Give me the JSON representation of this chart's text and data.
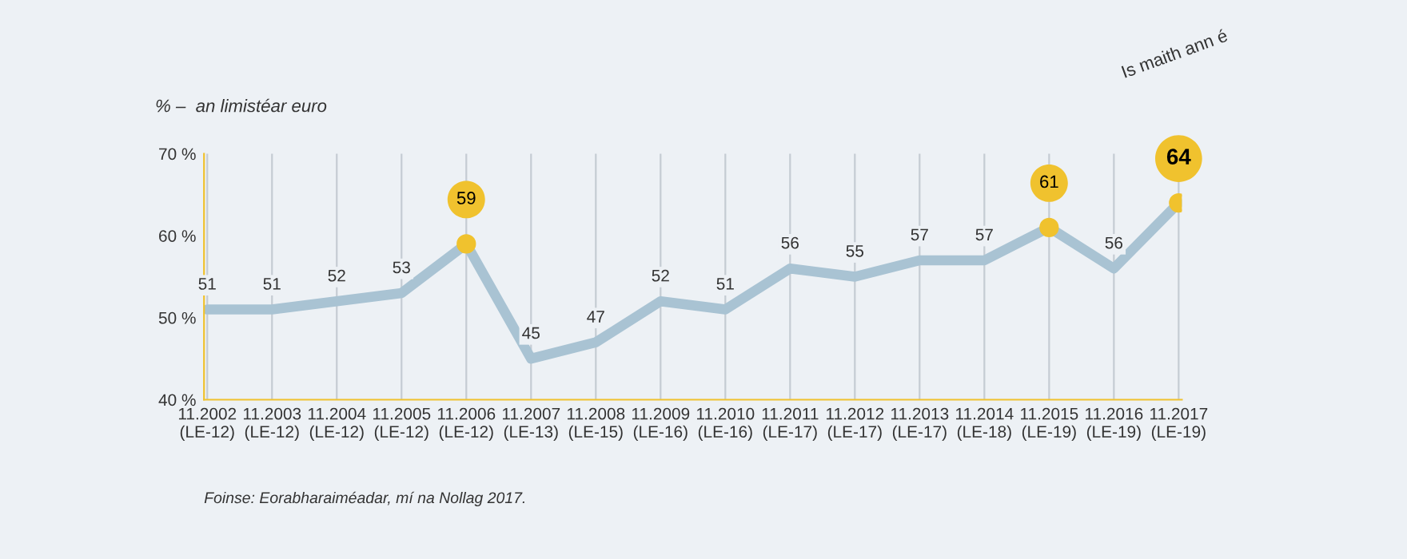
{
  "chart_data": {
    "type": "line",
    "title": "% –  an limistéar euro",
    "categories": [
      "11.2002\n(LE-12)",
      "11.2003\n(LE-12)",
      "11.2004\n(LE-12)",
      "11.2005\n(LE-12)",
      "11.2006\n(LE-12)",
      "11.2007\n(LE-13)",
      "11.2008\n(LE-15)",
      "11.2009\n(LE-16)",
      "11.2010\n(LE-16)",
      "11.2011\n(LE-17)",
      "11.2012\n(LE-17)",
      "11.2013\n(LE-17)",
      "11.2014\n(LE-18)",
      "11.2015\n(LE-19)",
      "11.2016\n(LE-19)",
      "11.2017\n(LE-19)"
    ],
    "series": [
      {
        "color": "#a9c3d3",
        "values": [
          51,
          51,
          52,
          53,
          59,
          45,
          47,
          52,
          51,
          56,
          55,
          57,
          57,
          61,
          56,
          64
        ],
        "colors": [
          "#a9c3d3",
          "#a9c3d3",
          "#a9c3d3",
          "#a9c3d3",
          "#f0c22e",
          "#a9c3d3",
          "#a9c3d3",
          "#a9c3d3",
          "#a9c3d3",
          "#a9c3d3",
          "#a9c3d3",
          "#a9c3d3",
          "#a9c3d3",
          "#f0c22e",
          "#a9c3d3",
          "#f0c22e"
        ]
      }
    ],
    "data_labels": true,
    "ylim": [
      40,
      70
    ],
    "yticks": [
      {
        "value": 40,
        "label": "40 %"
      },
      {
        "value": 50,
        "label": "50 %"
      },
      {
        "value": 60,
        "label": "60 %"
      },
      {
        "value": 70,
        "label": "70 %"
      }
    ],
    "grid": "x",
    "legend": false,
    "annotations": [
      "Is maith ann é",
      "Foinse: Eorabharaiméadar, mí na Nollag 2017."
    ]
  }
}
